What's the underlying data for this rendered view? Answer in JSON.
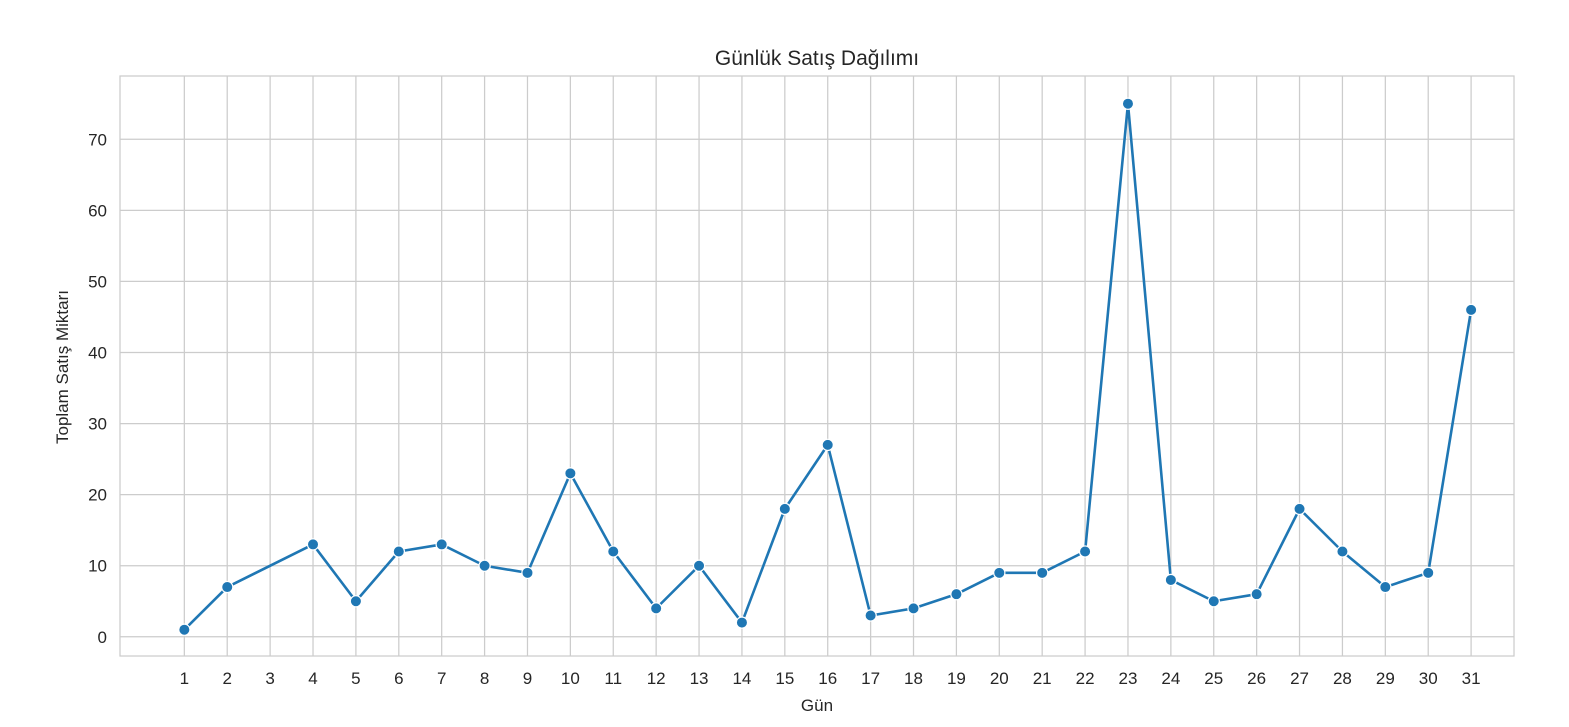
{
  "chart_data": {
    "type": "line",
    "title": "Günlük Satış Dağılımı",
    "xlabel": "Gün",
    "ylabel": "Toplam Satış Miktarı",
    "x": [
      1,
      2,
      4,
      5,
      6,
      7,
      8,
      9,
      10,
      11,
      12,
      13,
      14,
      15,
      16,
      17,
      18,
      19,
      20,
      21,
      22,
      23,
      24,
      25,
      26,
      27,
      28,
      29,
      30,
      31
    ],
    "x_ticks": [
      1,
      2,
      3,
      4,
      5,
      6,
      7,
      8,
      9,
      10,
      11,
      12,
      13,
      14,
      15,
      16,
      17,
      18,
      19,
      20,
      21,
      22,
      23,
      24,
      25,
      26,
      27,
      28,
      29,
      30,
      31
    ],
    "y_ticks": [
      0,
      10,
      20,
      30,
      40,
      50,
      60,
      70
    ],
    "series": [
      {
        "values": [
          1,
          7,
          13,
          5,
          12,
          13,
          10,
          9,
          23,
          12,
          4,
          10,
          2,
          18,
          27,
          3,
          4,
          6,
          9,
          9,
          12,
          75,
          8,
          5,
          6,
          18,
          12,
          7,
          9,
          46
        ],
        "color": "#1f77b4",
        "marker": "circle"
      }
    ],
    "xlim": [
      -0.5,
      32
    ],
    "ylim": [
      -2.7,
      78.9
    ],
    "grid": true,
    "grid_color": "#cccccc",
    "background": "#ffffff"
  }
}
